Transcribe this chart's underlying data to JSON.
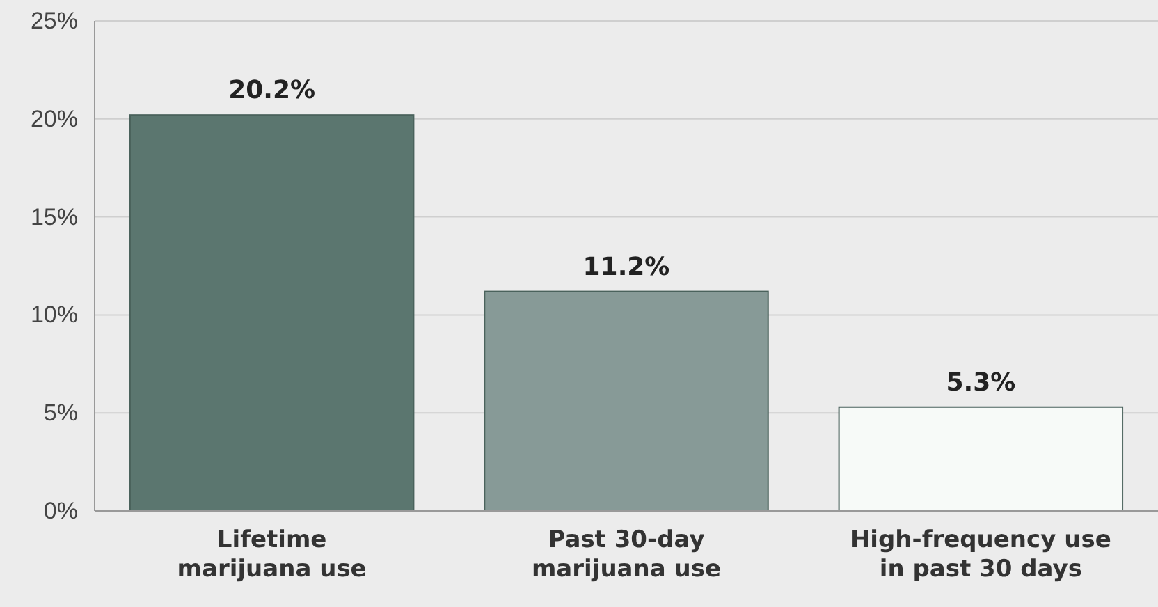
{
  "chart_data": {
    "type": "bar",
    "categories": [
      "Lifetime\nmarijuana use",
      "Past 30-day\nmarijuana use",
      "High-frequency use\nin past 30 days"
    ],
    "values": [
      20.2,
      11.2,
      5.3
    ],
    "value_labels": [
      "20.2%",
      "11.2%",
      "5.3%"
    ],
    "colors": [
      "#5b766f",
      "#879a97",
      "#f7faf8"
    ],
    "ylim": [
      0,
      25
    ],
    "yticks": [
      {
        "value": 0,
        "label": "0%"
      },
      {
        "value": 5,
        "label": "5%"
      },
      {
        "value": 10,
        "label": "10%"
      },
      {
        "value": 15,
        "label": "15%"
      },
      {
        "value": 20,
        "label": "20%"
      },
      {
        "value": 25,
        "label": "25%"
      }
    ],
    "grid": "y"
  }
}
